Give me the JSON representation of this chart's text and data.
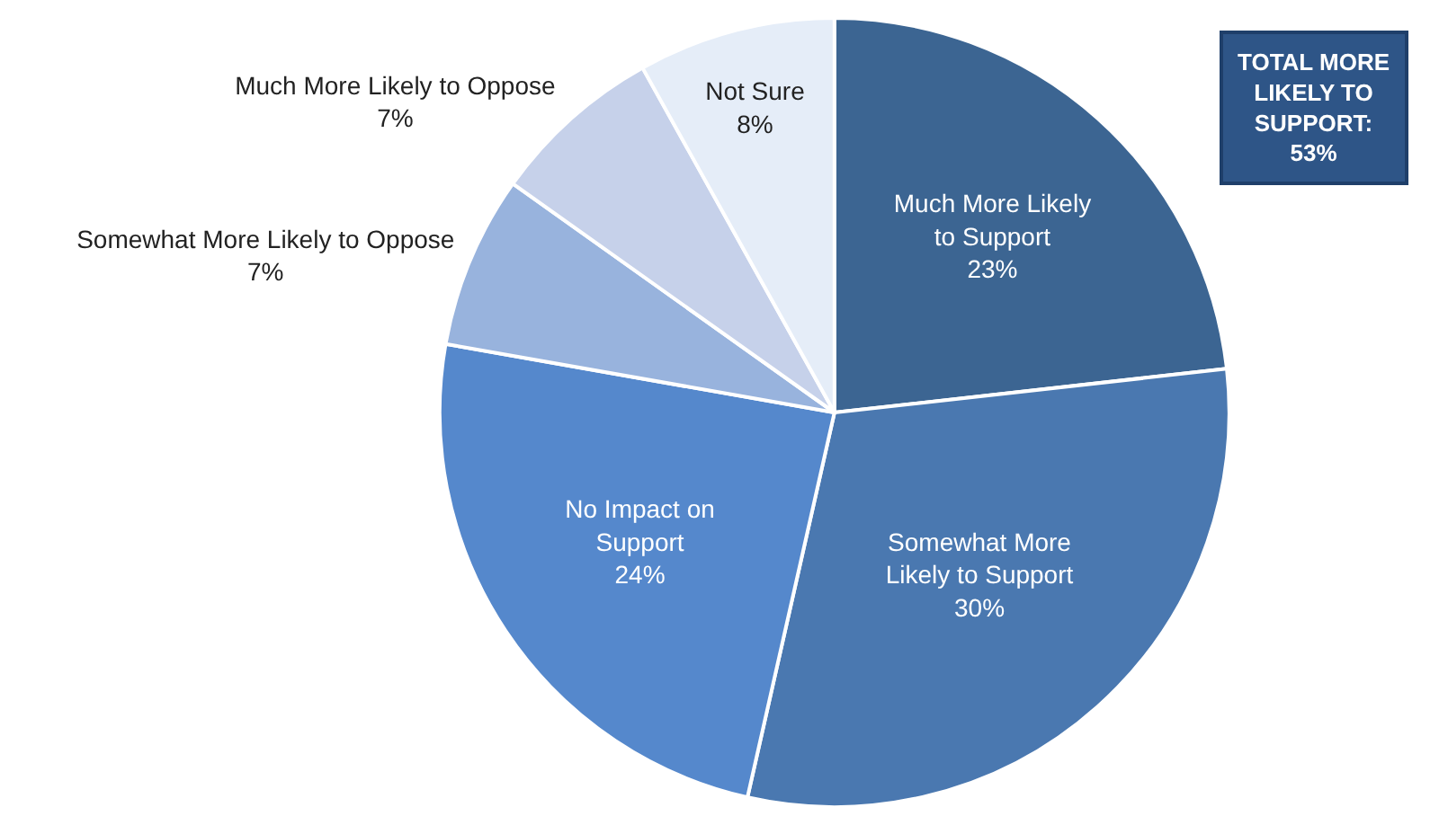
{
  "chart_data": {
    "type": "pie",
    "categories": [
      "Much More Likely to Support",
      "Somewhat More Likely to Support",
      "No Impact on Support",
      "Somewhat More Likely to Oppose",
      "Much More Likely to Oppose",
      "Not Sure"
    ],
    "values": [
      23,
      30,
      24,
      7,
      7,
      8
    ],
    "value_labels": [
      "23%",
      "30%",
      "24%",
      "7%",
      "7%",
      "8%"
    ],
    "colors": [
      "#3c6592",
      "#4a78b0",
      "#5588cc",
      "#98b3dd",
      "#c6d1ea",
      "#e5edf8"
    ],
    "annotations": [
      "TOTAL MORE LIKELY TO SUPPORT: 53%"
    ],
    "legend": false
  }
}
